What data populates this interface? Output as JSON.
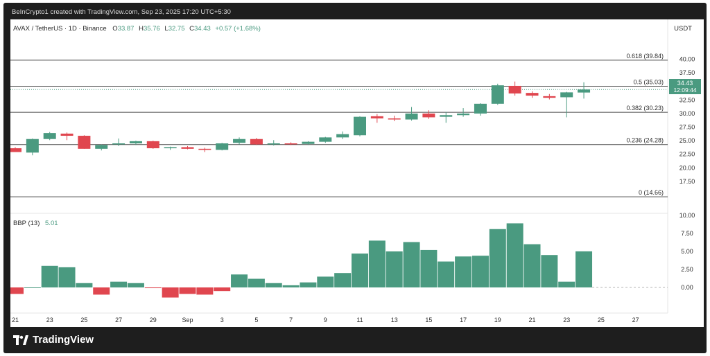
{
  "header": {
    "attribution": "BeInCrypto1 created with TradingView.com, Sep 23, 2025 17:20 UTC+5:30"
  },
  "footer": {
    "brand": "TradingView",
    "logo_icon": "tradingview-logo-icon"
  },
  "legend": {
    "symbol": "AVAX / TetherUS · 1D · Binance",
    "open_label": "O",
    "open": "33.87",
    "high_label": "H",
    "high": "35.76",
    "low_label": "L",
    "low": "32.75",
    "close_label": "C",
    "close": "34.43",
    "change": "+0.57 (+1.68%)"
  },
  "price_axis": {
    "unit": "USDT",
    "last_price": "34.43",
    "countdown": "12:09:44"
  },
  "indicator": {
    "name": "BBP (13)",
    "value": "5.01"
  },
  "colors": {
    "up": "#4a9a80",
    "down": "#e0464f",
    "axis_text": "#2b2b2b"
  },
  "chart_data": [
    {
      "type": "candlestick",
      "title": "AVAX / TetherUS · 1D · Binance",
      "ylabel": "USDT",
      "ylim": [
        12.5,
        42.5
      ],
      "y_ticks": [
        "40.00",
        "37.50",
        "35.00",
        "32.50",
        "30.00",
        "27.50",
        "25.00",
        "22.50",
        "20.00",
        "17.50"
      ],
      "x_ticks": [
        "21",
        "23",
        "25",
        "27",
        "29",
        "Sep",
        "3",
        "5",
        "7",
        "9",
        "11",
        "13",
        "15",
        "17",
        "19",
        "21",
        "23",
        "25",
        "27"
      ],
      "fib_levels": [
        {
          "label": "0.618 (39.84)",
          "value": 39.84
        },
        {
          "label": "0.5 (35.03)",
          "value": 35.03
        },
        {
          "label": "0.382 (30.23)",
          "value": 30.23
        },
        {
          "label": "0.236 (24.28)",
          "value": 24.28
        },
        {
          "label": "0 (14.66)",
          "value": 14.66
        }
      ],
      "candles": [
        {
          "date": "Aug 21",
          "o": 23.6,
          "h": 23.8,
          "l": 22.9,
          "c": 22.9
        },
        {
          "date": "Aug 22",
          "o": 22.8,
          "h": 25.4,
          "l": 22.3,
          "c": 25.3
        },
        {
          "date": "Aug 23",
          "o": 25.3,
          "h": 26.6,
          "l": 25.1,
          "c": 26.4
        },
        {
          "date": "Aug 24",
          "o": 26.3,
          "h": 26.5,
          "l": 25.1,
          "c": 25.9
        },
        {
          "date": "Aug 25",
          "o": 25.9,
          "h": 26.0,
          "l": 23.5,
          "c": 23.5
        },
        {
          "date": "Aug 26",
          "o": 23.5,
          "h": 24.3,
          "l": 23.2,
          "c": 24.2
        },
        {
          "date": "Aug 27",
          "o": 24.3,
          "h": 25.4,
          "l": 24.0,
          "c": 24.5
        },
        {
          "date": "Aug 28",
          "o": 24.5,
          "h": 25.0,
          "l": 24.2,
          "c": 24.9
        },
        {
          "date": "Aug 29",
          "o": 24.9,
          "h": 25.0,
          "l": 23.5,
          "c": 23.6
        },
        {
          "date": "Aug 30",
          "o": 23.6,
          "h": 23.9,
          "l": 23.3,
          "c": 23.8
        },
        {
          "date": "Aug 31",
          "o": 23.8,
          "h": 24.0,
          "l": 23.4,
          "c": 23.5
        },
        {
          "date": "Sep 1",
          "o": 23.5,
          "h": 23.7,
          "l": 22.9,
          "c": 23.3
        },
        {
          "date": "Sep 2",
          "o": 23.3,
          "h": 24.6,
          "l": 23.2,
          "c": 24.5
        },
        {
          "date": "Sep 3",
          "o": 24.6,
          "h": 25.6,
          "l": 24.3,
          "c": 25.3
        },
        {
          "date": "Sep 4",
          "o": 25.3,
          "h": 25.5,
          "l": 24.2,
          "c": 24.3
        },
        {
          "date": "Sep 5",
          "o": 24.3,
          "h": 25.1,
          "l": 24.1,
          "c": 24.5
        },
        {
          "date": "Sep 6",
          "o": 24.5,
          "h": 24.7,
          "l": 24.2,
          "c": 24.4
        },
        {
          "date": "Sep 7",
          "o": 24.4,
          "h": 24.9,
          "l": 24.2,
          "c": 24.8
        },
        {
          "date": "Sep 8",
          "o": 24.8,
          "h": 25.7,
          "l": 24.6,
          "c": 25.6
        },
        {
          "date": "Sep 9",
          "o": 25.6,
          "h": 26.7,
          "l": 25.3,
          "c": 26.2
        },
        {
          "date": "Sep 10",
          "o": 26.0,
          "h": 29.5,
          "l": 25.8,
          "c": 29.4
        },
        {
          "date": "Sep 11",
          "o": 29.5,
          "h": 29.9,
          "l": 28.3,
          "c": 29.1
        },
        {
          "date": "Sep 12",
          "o": 29.1,
          "h": 29.6,
          "l": 28.6,
          "c": 28.9
        },
        {
          "date": "Sep 13",
          "o": 28.9,
          "h": 31.2,
          "l": 28.7,
          "c": 30.0
        },
        {
          "date": "Sep 14",
          "o": 30.0,
          "h": 30.6,
          "l": 29.0,
          "c": 29.3
        },
        {
          "date": "Sep 15",
          "o": 29.4,
          "h": 30.3,
          "l": 28.3,
          "c": 29.7
        },
        {
          "date": "Sep 16",
          "o": 29.7,
          "h": 31.0,
          "l": 29.4,
          "c": 30.0
        },
        {
          "date": "Sep 17",
          "o": 30.0,
          "h": 31.9,
          "l": 29.6,
          "c": 31.8
        },
        {
          "date": "Sep 18",
          "o": 31.8,
          "h": 35.5,
          "l": 31.6,
          "c": 35.2
        },
        {
          "date": "Sep 19",
          "o": 35.1,
          "h": 35.9,
          "l": 33.3,
          "c": 33.7
        },
        {
          "date": "Sep 20",
          "o": 33.8,
          "h": 34.1,
          "l": 32.9,
          "c": 33.3
        },
        {
          "date": "Sep 21",
          "o": 33.2,
          "h": 33.6,
          "l": 32.6,
          "c": 32.9
        },
        {
          "date": "Sep 22",
          "o": 33.0,
          "h": 34.0,
          "l": 29.3,
          "c": 33.9
        },
        {
          "date": "Sep 23",
          "o": 33.87,
          "h": 35.76,
          "l": 32.75,
          "c": 34.43
        }
      ]
    },
    {
      "type": "bar",
      "title": "BBP (13)",
      "ylim": [
        -2.5,
        10.0
      ],
      "y_ticks": [
        "10.00",
        "7.50",
        "5.00",
        "2.50",
        "0.00"
      ],
      "values": [
        -0.9,
        0.0,
        3.0,
        2.8,
        0.6,
        -1.0,
        0.8,
        0.6,
        -0.1,
        -1.4,
        -0.9,
        -1.0,
        -0.5,
        1.8,
        1.2,
        0.6,
        0.3,
        0.7,
        1.5,
        2.0,
        4.7,
        6.5,
        5.0,
        6.3,
        5.2,
        3.6,
        4.3,
        4.4,
        8.1,
        8.9,
        6.0,
        4.5,
        0.8,
        5.01
      ]
    }
  ]
}
